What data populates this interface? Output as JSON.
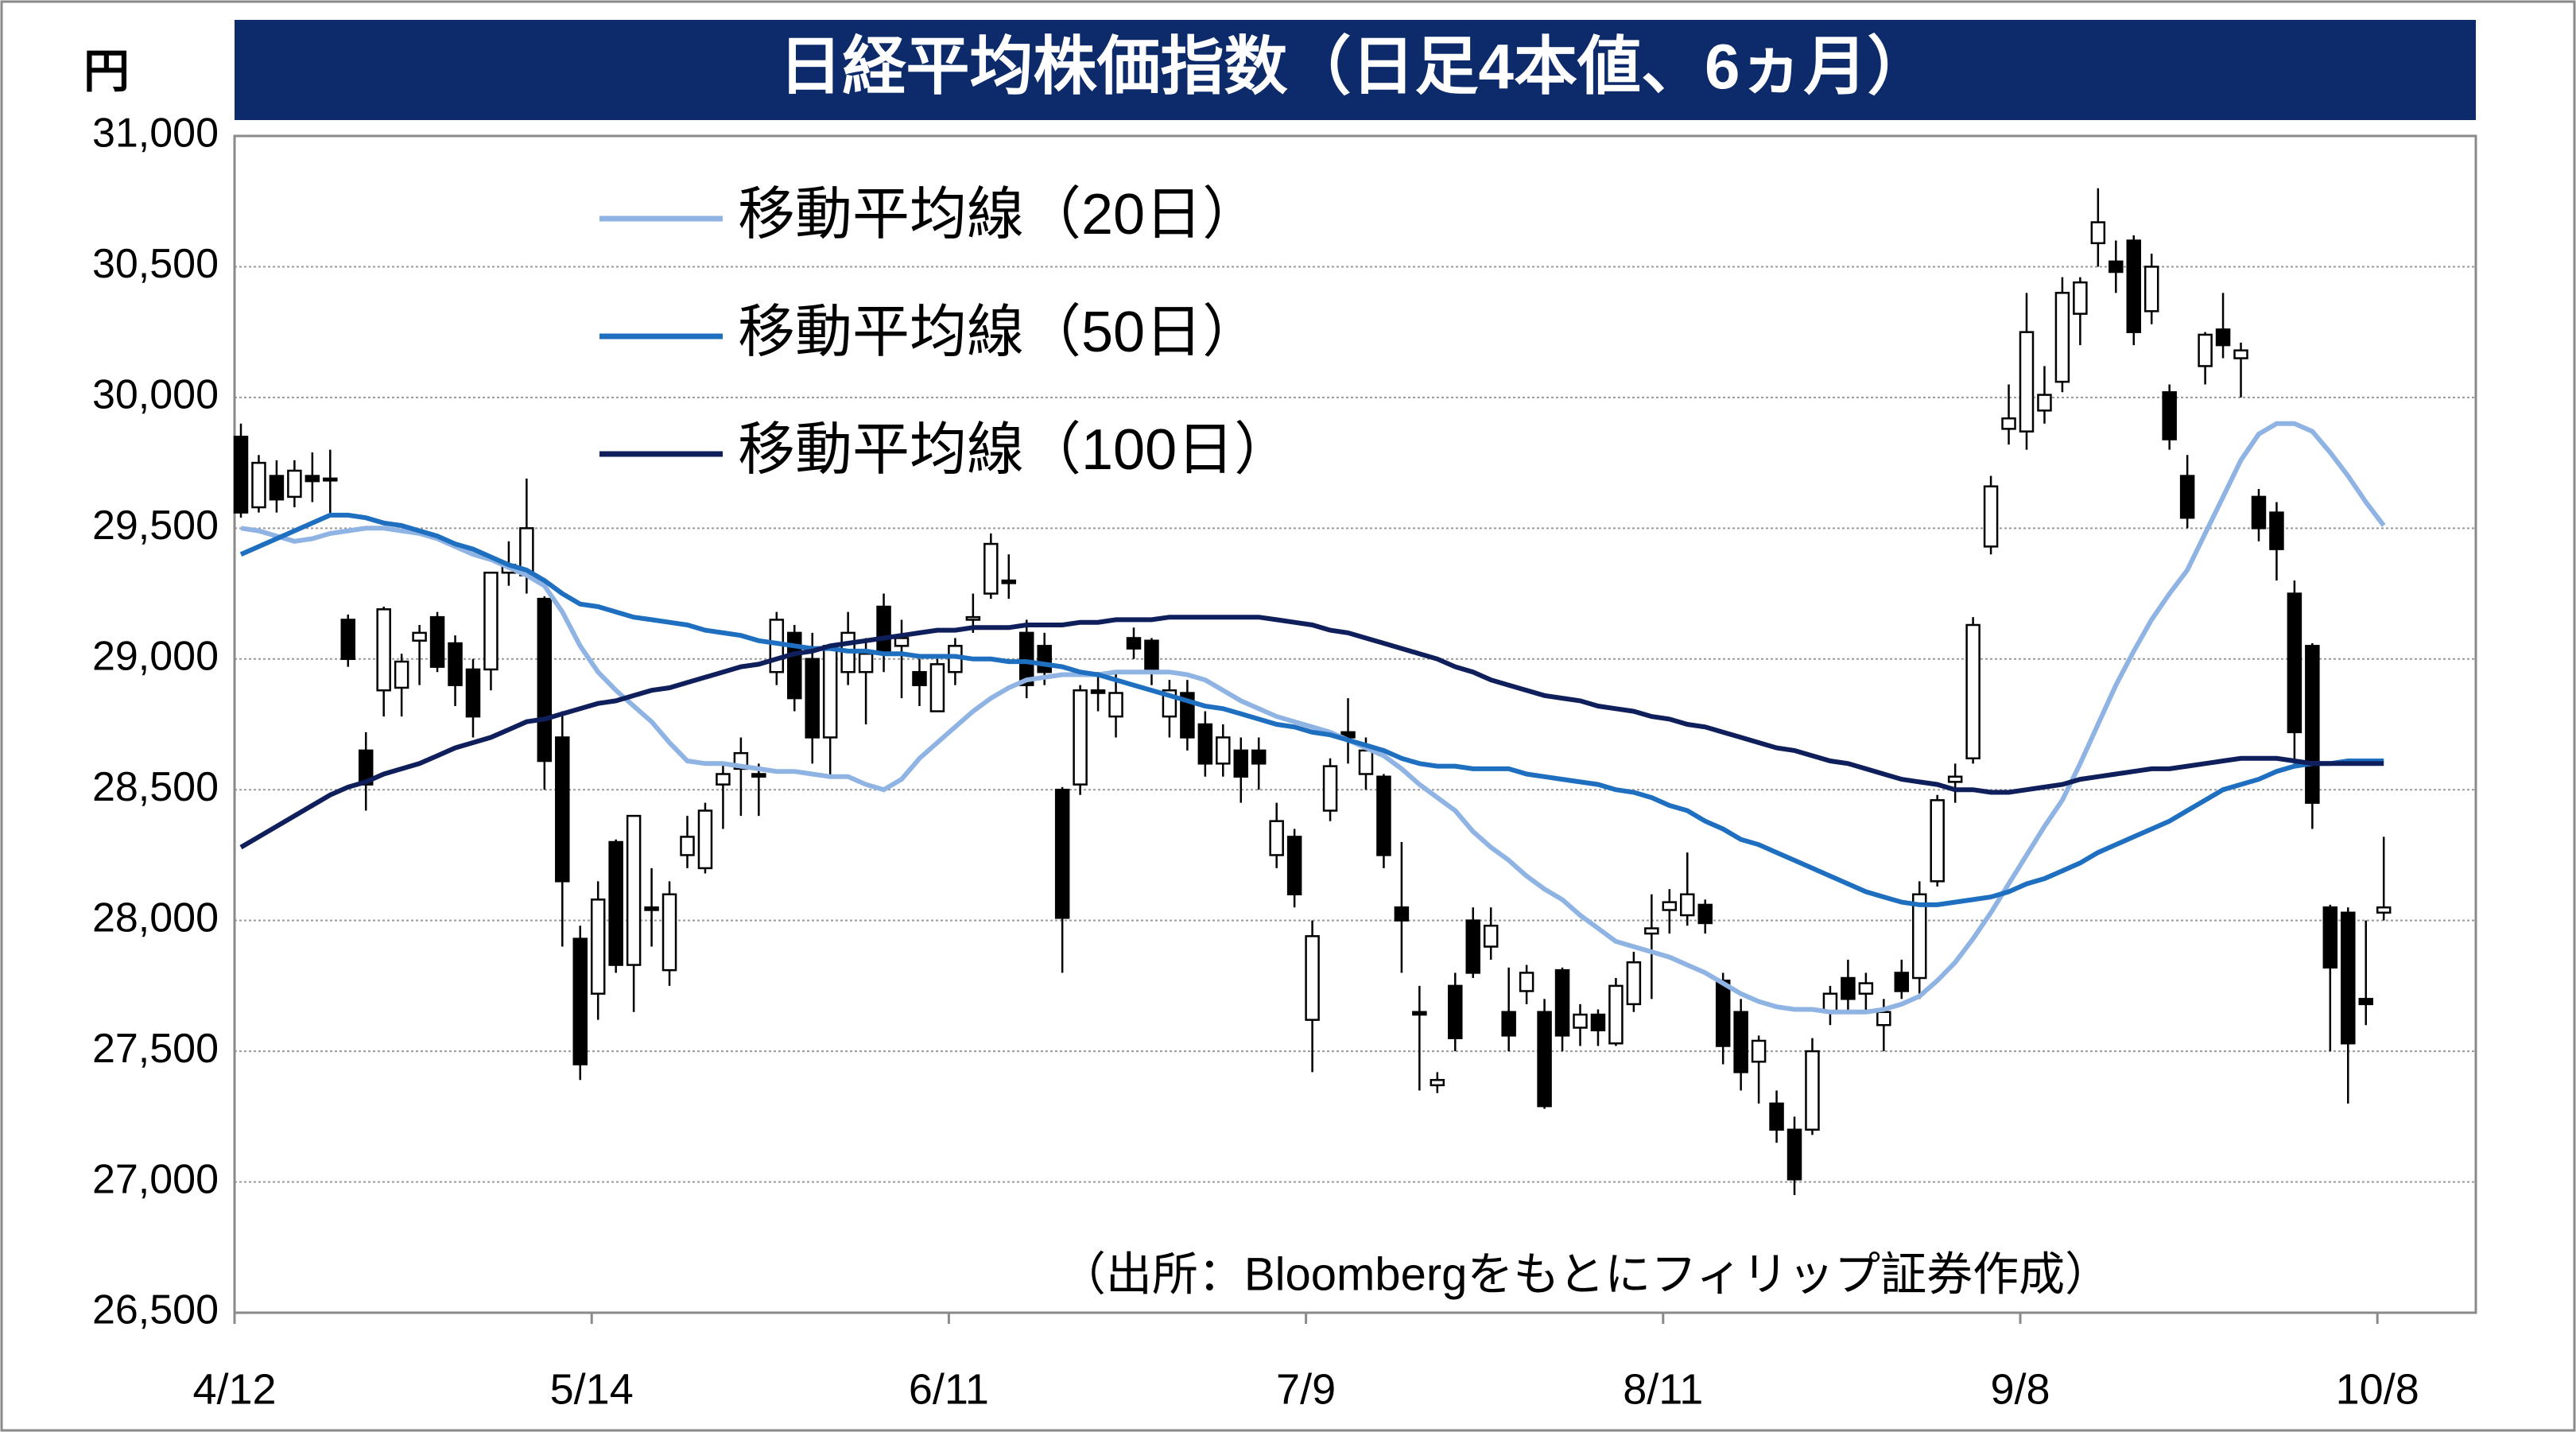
{
  "chart_data": {
    "type": "candlestick",
    "title": "日経平均株価指数（日足4本値、6ヵ月）",
    "y_label": "円",
    "source": "（出所：Bloombergをもとにフィリップ証券作成）",
    "categories": [
      "4/12",
      null,
      null,
      null,
      null,
      null,
      null,
      null,
      null,
      null,
      null,
      null,
      null,
      null,
      null,
      null,
      null,
      null,
      null,
      null,
      "5/14",
      null,
      null,
      null,
      null,
      null,
      null,
      null,
      null,
      null,
      null,
      null,
      null,
      null,
      null,
      null,
      null,
      null,
      null,
      null,
      "6/11",
      null,
      null,
      null,
      null,
      null,
      null,
      null,
      null,
      null,
      null,
      null,
      null,
      null,
      null,
      null,
      null,
      null,
      null,
      null,
      "7/9",
      null,
      null,
      null,
      null,
      null,
      null,
      null,
      null,
      null,
      null,
      null,
      null,
      null,
      null,
      null,
      null,
      null,
      null,
      null,
      "8/11",
      null,
      null,
      null,
      null,
      null,
      null,
      null,
      null,
      null,
      null,
      null,
      null,
      null,
      null,
      null,
      null,
      null,
      null,
      null,
      "9/8",
      null,
      null,
      null,
      null,
      null,
      null,
      null,
      null,
      null,
      null,
      null,
      null,
      null,
      null,
      null,
      null,
      null,
      null,
      null,
      "10/8"
    ],
    "ohlc": {
      "open": [
        29850,
        29580,
        29700,
        29620,
        29700,
        29690,
        29150,
        28650,
        28880,
        28890,
        29070,
        29160,
        29060,
        28960,
        28960,
        29330,
        29320,
        29230,
        28700,
        27930,
        27720,
        28300,
        27830,
        28050,
        27810,
        28250,
        28200,
        28520,
        28580,
        28560,
        28950,
        29100,
        29000,
        28700,
        28950,
        28950,
        29200,
        29050,
        28950,
        28800,
        28950,
        29150,
        29250,
        29300,
        29100,
        29050,
        28500,
        28520,
        28880,
        28780,
        29080,
        29070,
        28780,
        28870,
        28750,
        28600,
        28650,
        28650,
        28250,
        28320,
        27620,
        28420,
        28720,
        28560,
        28550,
        28050,
        27650,
        27370,
        27750,
        28000,
        27900,
        27650,
        27730,
        27650,
        27810,
        27590,
        27640,
        27530,
        27680,
        27950,
        28040,
        28020,
        28060,
        27770,
        27650,
        27460,
        27300,
        27200,
        27200,
        27650,
        27780,
        27720,
        27600,
        27800,
        27780,
        28150,
        28530,
        28620,
        29430,
        29880,
        29870,
        29950,
        30060,
        30320,
        30590,
        30520,
        30600,
        30330,
        30020,
        29700,
        30120,
        30260,
        30150,
        29620,
        29560,
        29250,
        29050,
        28050,
        28030,
        27700,
        28030
      ],
      "high": [
        29900,
        29780,
        29760,
        29760,
        29790,
        29800,
        29170,
        28720,
        29200,
        29020,
        29130,
        29180,
        29090,
        29000,
        29330,
        29450,
        29690,
        29240,
        28800,
        27980,
        28150,
        28310,
        28400,
        28200,
        28150,
        28400,
        28450,
        28600,
        28700,
        28600,
        29180,
        29130,
        29100,
        29050,
        29180,
        29080,
        29250,
        29150,
        29000,
        29000,
        29080,
        29250,
        29480,
        29400,
        29150,
        29100,
        28510,
        28900,
        28950,
        28950,
        29120,
        29080,
        28920,
        28920,
        28800,
        28750,
        28700,
        28700,
        28450,
        28350,
        28000,
        28620,
        28850,
        28700,
        28560,
        28300,
        27750,
        27420,
        27800,
        28050,
        28050,
        27820,
        27830,
        27700,
        27820,
        27680,
        27660,
        27780,
        27880,
        28100,
        28120,
        28260,
        28080,
        27800,
        27700,
        27560,
        27350,
        27250,
        27550,
        27750,
        27850,
        27800,
        27700,
        27850,
        28150,
        28480,
        28600,
        29160,
        29700,
        30050,
        30400,
        30120,
        30460,
        30460,
        30800,
        30600,
        30620,
        30550,
        30050,
        29780,
        30250,
        30400,
        30210,
        29650,
        29600,
        29300,
        29060,
        28060,
        28050,
        28000,
        28320
      ],
      "low": [
        29540,
        29560,
        29560,
        29580,
        29600,
        29550,
        28970,
        28420,
        28780,
        28780,
        28900,
        28950,
        28820,
        28700,
        28880,
        29280,
        29250,
        28500,
        27900,
        27390,
        27620,
        27800,
        27650,
        27900,
        27750,
        28200,
        28180,
        28350,
        28400,
        28400,
        28900,
        28800,
        28600,
        28550,
        28900,
        28750,
        28950,
        28850,
        28820,
        28800,
        28900,
        29100,
        29230,
        29230,
        28850,
        28900,
        27800,
        28480,
        28800,
        28700,
        29000,
        28900,
        28700,
        28650,
        28550,
        28550,
        28450,
        28500,
        28200,
        28050,
        27420,
        28380,
        28600,
        28500,
        28200,
        27800,
        27350,
        27340,
        27500,
        27780,
        27850,
        27500,
        27680,
        27280,
        27500,
        27520,
        27520,
        27520,
        27650,
        27700,
        27950,
        27980,
        27950,
        27450,
        27350,
        27300,
        27150,
        26950,
        27180,
        27600,
        27650,
        27650,
        27500,
        27700,
        27700,
        28130,
        28450,
        28600,
        29400,
        29820,
        29800,
        29900,
        30020,
        30200,
        30500,
        30400,
        30200,
        30280,
        29800,
        29500,
        30050,
        30150,
        30000,
        29450,
        29300,
        28600,
        28350,
        27500,
        27300,
        27600,
        28000
      ],
      "close": [
        29560,
        29750,
        29610,
        29720,
        29680,
        29690,
        29000,
        28520,
        29190,
        28990,
        29100,
        28970,
        28900,
        28780,
        29330,
        29360,
        29500,
        28610,
        28150,
        27450,
        28080,
        27830,
        28400,
        28040,
        28100,
        28320,
        28420,
        28560,
        28640,
        28550,
        29150,
        28850,
        28700,
        29050,
        29100,
        29020,
        29020,
        29080,
        28900,
        28980,
        29050,
        29160,
        29440,
        29290,
        28900,
        28950,
        28010,
        28880,
        28870,
        28870,
        29040,
        28950,
        28880,
        28700,
        28600,
        28700,
        28550,
        28600,
        28380,
        28100,
        27940,
        28590,
        28700,
        28650,
        28250,
        28000,
        27640,
        27390,
        27550,
        27800,
        27980,
        27560,
        27800,
        27290,
        27560,
        27640,
        27580,
        27750,
        27840,
        27970,
        28070,
        28100,
        27990,
        27520,
        27420,
        27540,
        27200,
        27010,
        27500,
        27720,
        27700,
        27760,
        27650,
        27730,
        28100,
        28460,
        28550,
        29130,
        29660,
        29920,
        30250,
        30010,
        30400,
        30440,
        30670,
        30480,
        30250,
        30500,
        29840,
        29540,
        30240,
        30200,
        30180,
        29500,
        29420,
        28720,
        28450,
        27820,
        27530,
        27680,
        28050
      ]
    },
    "up_color": "#ffffff",
    "down_color": "#000000",
    "series": [
      {
        "name": "移動平均線（20日）",
        "color": "#8fb4e3",
        "values": [
          29500,
          29490,
          29470,
          29450,
          29460,
          29480,
          29490,
          29500,
          29500,
          29490,
          29480,
          29460,
          29430,
          29400,
          29380,
          29350,
          29320,
          29280,
          29180,
          29050,
          28950,
          28880,
          28820,
          28760,
          28680,
          28610,
          28600,
          28600,
          28590,
          28580,
          28570,
          28570,
          28560,
          28550,
          28550,
          28520,
          28500,
          28540,
          28620,
          28680,
          28740,
          28800,
          28850,
          28890,
          28920,
          28930,
          28940,
          28940,
          28940,
          28950,
          28950,
          28950,
          28950,
          28940,
          28920,
          28880,
          28840,
          28810,
          28780,
          28760,
          28740,
          28720,
          28690,
          28660,
          28630,
          28580,
          28520,
          28470,
          28420,
          28340,
          28280,
          28230,
          28170,
          28120,
          28080,
          28020,
          27970,
          27920,
          27900,
          27880,
          27860,
          27830,
          27800,
          27760,
          27720,
          27690,
          27670,
          27660,
          27660,
          27650,
          27650,
          27650,
          27660,
          27680,
          27710,
          27770,
          27840,
          27930,
          28030,
          28140,
          28250,
          28360,
          28460,
          28600,
          28750,
          28900,
          29030,
          29150,
          29250,
          29340,
          29480,
          29620,
          29760,
          29860,
          29900,
          29900,
          29870,
          29790,
          29700,
          29600,
          29510
        ]
      },
      {
        "name": "移動平均線（50日）",
        "color": "#1f6fc0",
        "values": [
          29400,
          29430,
          29460,
          29490,
          29520,
          29550,
          29550,
          29540,
          29520,
          29510,
          29490,
          29470,
          29440,
          29420,
          29390,
          29360,
          29340,
          29300,
          29250,
          29210,
          29200,
          29180,
          29160,
          29150,
          29140,
          29130,
          29110,
          29100,
          29090,
          29070,
          29060,
          29050,
          29040,
          29040,
          29030,
          29030,
          29020,
          29020,
          29010,
          29010,
          29010,
          29000,
          29000,
          28990,
          28990,
          28980,
          28970,
          28950,
          28940,
          28920,
          28900,
          28880,
          28860,
          28840,
          28820,
          28810,
          28790,
          28770,
          28750,
          28740,
          28720,
          28710,
          28690,
          28670,
          28650,
          28620,
          28600,
          28590,
          28590,
          28580,
          28580,
          28580,
          28560,
          28550,
          28540,
          28530,
          28520,
          28500,
          28490,
          28470,
          28440,
          28420,
          28380,
          28350,
          28310,
          28290,
          28260,
          28230,
          28200,
          28170,
          28140,
          28110,
          28090,
          28070,
          28060,
          28060,
          28070,
          28080,
          28090,
          28110,
          28140,
          28160,
          28190,
          28220,
          28260,
          28290,
          28320,
          28350,
          28380,
          28420,
          28460,
          28500,
          28520,
          28540,
          28570,
          28590,
          28600,
          28600,
          28610,
          28610,
          28610
        ]
      },
      {
        "name": "移動平均線（100日）",
        "color": "#0f1f5c",
        "values": [
          28280,
          28320,
          28360,
          28400,
          28440,
          28480,
          28510,
          28530,
          28560,
          28580,
          28600,
          28630,
          28660,
          28680,
          28700,
          28730,
          28760,
          28770,
          28790,
          28810,
          28830,
          28840,
          28860,
          28880,
          28890,
          28910,
          28930,
          28950,
          28970,
          28980,
          29000,
          29020,
          29030,
          29050,
          29060,
          29070,
          29080,
          29090,
          29100,
          29110,
          29110,
          29120,
          29120,
          29120,
          29130,
          29130,
          29130,
          29140,
          29140,
          29150,
          29150,
          29150,
          29160,
          29160,
          29160,
          29160,
          29160,
          29160,
          29150,
          29140,
          29130,
          29110,
          29100,
          29080,
          29060,
          29040,
          29020,
          29000,
          28970,
          28950,
          28920,
          28900,
          28880,
          28860,
          28850,
          28840,
          28820,
          28810,
          28800,
          28780,
          28770,
          28750,
          28740,
          28720,
          28700,
          28680,
          28660,
          28650,
          28630,
          28610,
          28600,
          28580,
          28560,
          28540,
          28530,
          28520,
          28500,
          28500,
          28490,
          28490,
          28500,
          28510,
          28520,
          28540,
          28550,
          28560,
          28570,
          28580,
          28580,
          28590,
          28600,
          28610,
          28620,
          28620,
          28620,
          28610,
          28600,
          28600,
          28600,
          28600,
          28600
        ]
      }
    ],
    "ylim": [
      26500,
      31000
    ],
    "yticks": [
      {
        "value": 26500,
        "label": "26,500"
      },
      {
        "value": 27000,
        "label": "27,000"
      },
      {
        "value": 27500,
        "label": "27,500"
      },
      {
        "value": 28000,
        "label": "28,000"
      },
      {
        "value": 28500,
        "label": "28,500"
      },
      {
        "value": 29000,
        "label": "29,000"
      },
      {
        "value": 29500,
        "label": "29,500"
      },
      {
        "value": 30000,
        "label": "30,000"
      },
      {
        "value": 30500,
        "label": "30,500"
      },
      {
        "value": 31000,
        "label": "31,000"
      }
    ],
    "grid": true,
    "legend": "top-left"
  }
}
